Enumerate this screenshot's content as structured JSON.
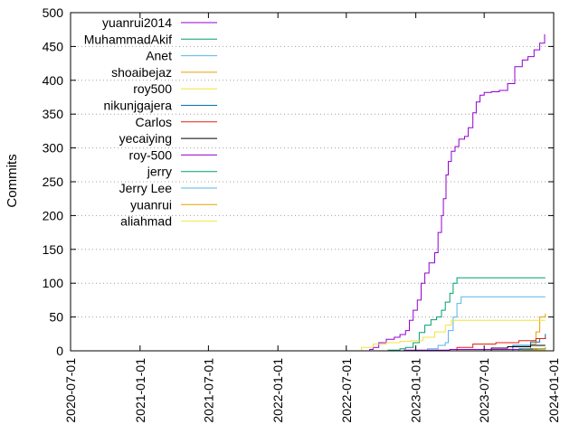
{
  "chart_data": {
    "type": "line",
    "title": "",
    "xlabel": "",
    "ylabel": "Commits",
    "x_axis": "date",
    "xlim": [
      "2020-07-01",
      "2024-01-01"
    ],
    "ylim": [
      0,
      500
    ],
    "grid": true,
    "legend_position": "top-left",
    "x_ticks": [
      "2020-07-01",
      "2021-01-01",
      "2021-07-01",
      "2022-01-01",
      "2022-07-01",
      "2023-01-01",
      "2023-07-01",
      "2024-01-01"
    ],
    "y_ticks": [
      0,
      50,
      100,
      150,
      200,
      250,
      300,
      350,
      400,
      450,
      500
    ],
    "series": [
      {
        "name": "yuanrui2014",
        "color": "#9400d3",
        "points": [
          [
            "2022-08-20",
            0
          ],
          [
            "2022-09-01",
            2
          ],
          [
            "2022-09-10",
            5
          ],
          [
            "2022-09-25",
            12
          ],
          [
            "2022-10-15",
            17
          ],
          [
            "2022-11-05",
            20
          ],
          [
            "2022-11-20",
            24
          ],
          [
            "2022-12-05",
            30
          ],
          [
            "2022-12-15",
            45
          ],
          [
            "2022-12-25",
            60
          ],
          [
            "2023-01-05",
            75
          ],
          [
            "2023-01-15",
            100
          ],
          [
            "2023-01-25",
            115
          ],
          [
            "2023-02-05",
            130
          ],
          [
            "2023-02-20",
            145
          ],
          [
            "2023-03-01",
            175
          ],
          [
            "2023-03-10",
            200
          ],
          [
            "2023-03-15",
            225
          ],
          [
            "2023-03-22",
            260
          ],
          [
            "2023-03-28",
            280
          ],
          [
            "2023-04-05",
            295
          ],
          [
            "2023-04-15",
            302
          ],
          [
            "2023-04-25",
            313
          ],
          [
            "2023-05-10",
            317
          ],
          [
            "2023-05-20",
            330
          ],
          [
            "2023-06-01",
            352
          ],
          [
            "2023-06-10",
            368
          ],
          [
            "2023-06-20",
            378
          ],
          [
            "2023-07-01",
            382
          ],
          [
            "2023-07-20",
            383
          ],
          [
            "2023-08-10",
            385
          ],
          [
            "2023-09-01",
            395
          ],
          [
            "2023-09-20",
            420
          ],
          [
            "2023-10-10",
            430
          ],
          [
            "2023-10-25",
            435
          ],
          [
            "2023-11-10",
            445
          ],
          [
            "2023-11-25",
            455
          ],
          [
            "2023-12-08",
            468
          ]
        ]
      },
      {
        "name": "MuhammadAkif",
        "color": "#009e73",
        "points": [
          [
            "2022-09-01",
            0
          ],
          [
            "2022-10-20",
            1
          ],
          [
            "2022-11-20",
            3
          ],
          [
            "2022-12-05",
            5
          ],
          [
            "2022-12-25",
            12
          ],
          [
            "2023-01-10",
            27
          ],
          [
            "2023-01-25",
            38
          ],
          [
            "2023-02-10",
            46
          ],
          [
            "2023-02-25",
            50
          ],
          [
            "2023-03-10",
            60
          ],
          [
            "2023-03-20",
            72
          ],
          [
            "2023-04-01",
            85
          ],
          [
            "2023-04-10",
            100
          ],
          [
            "2023-04-20",
            108
          ],
          [
            "2023-07-01",
            108
          ],
          [
            "2023-10-01",
            108
          ],
          [
            "2023-12-10",
            108
          ]
        ]
      },
      {
        "name": "Anet",
        "color": "#56b4e9",
        "points": [
          [
            "2022-12-20",
            0
          ],
          [
            "2023-02-01",
            3
          ],
          [
            "2023-03-01",
            8
          ],
          [
            "2023-03-20",
            12
          ],
          [
            "2023-03-28",
            30
          ],
          [
            "2023-04-10",
            50
          ],
          [
            "2023-04-20",
            70
          ],
          [
            "2023-05-01",
            80
          ],
          [
            "2023-08-01",
            80
          ],
          [
            "2023-10-01",
            80
          ],
          [
            "2023-12-10",
            80
          ]
        ]
      },
      {
        "name": "shoaibejaz",
        "color": "#e69f00",
        "points": [
          [
            "2023-10-20",
            0
          ],
          [
            "2023-11-01",
            10
          ],
          [
            "2023-11-15",
            28
          ],
          [
            "2023-11-25",
            50
          ],
          [
            "2023-12-10",
            55
          ]
        ]
      },
      {
        "name": "roy500",
        "color": "#f0e442",
        "points": [
          [
            "2022-07-15",
            0
          ],
          [
            "2022-08-10",
            5
          ],
          [
            "2022-09-10",
            10
          ],
          [
            "2022-10-15",
            12
          ],
          [
            "2022-11-20",
            14
          ],
          [
            "2022-12-20",
            15
          ],
          [
            "2023-01-20",
            20
          ],
          [
            "2023-02-20",
            28
          ],
          [
            "2023-03-20",
            38
          ],
          [
            "2023-04-05",
            45
          ],
          [
            "2023-07-01",
            45
          ],
          [
            "2023-10-01",
            45
          ],
          [
            "2023-12-10",
            45
          ]
        ]
      },
      {
        "name": "nikunjgajera",
        "color": "#0072b2",
        "points": [
          [
            "2023-08-01",
            0
          ],
          [
            "2023-09-15",
            8
          ],
          [
            "2023-11-01",
            13
          ],
          [
            "2023-11-25",
            18
          ],
          [
            "2023-12-10",
            25
          ]
        ]
      },
      {
        "name": "Carlos",
        "color": "#e51e10",
        "points": [
          [
            "2023-04-01",
            0
          ],
          [
            "2023-04-20",
            5
          ],
          [
            "2023-06-01",
            10
          ],
          [
            "2023-08-01",
            12
          ],
          [
            "2023-10-01",
            15
          ],
          [
            "2023-11-15",
            18
          ],
          [
            "2023-12-10",
            20
          ]
        ]
      },
      {
        "name": "yecaiying",
        "color": "#000000",
        "points": [
          [
            "2023-07-01",
            0
          ],
          [
            "2023-07-20",
            4
          ],
          [
            "2023-09-01",
            6
          ],
          [
            "2023-11-01",
            8
          ],
          [
            "2023-12-10",
            8
          ]
        ]
      },
      {
        "name": "roy-500",
        "color": "#9400d3",
        "points": [
          [
            "2022-08-01",
            0
          ],
          [
            "2022-12-01",
            1
          ],
          [
            "2023-04-01",
            2
          ],
          [
            "2023-12-10",
            2
          ]
        ]
      },
      {
        "name": "jerry",
        "color": "#009e73",
        "points": [
          [
            "2023-07-15",
            0
          ],
          [
            "2023-10-01",
            3
          ],
          [
            "2023-12-10",
            5
          ]
        ]
      },
      {
        "name": "Jerry Lee",
        "color": "#56b4e9",
        "points": [
          [
            "2023-09-01",
            0
          ],
          [
            "2023-11-20",
            2
          ],
          [
            "2023-12-10",
            3
          ]
        ]
      },
      {
        "name": "yuanrui",
        "color": "#e69f00",
        "points": [
          [
            "2023-09-01",
            0
          ],
          [
            "2023-11-10",
            3
          ],
          [
            "2023-12-10",
            4
          ]
        ]
      },
      {
        "name": "aliahmad",
        "color": "#f0e442",
        "points": [
          [
            "2023-08-01",
            0
          ],
          [
            "2023-10-10",
            1
          ],
          [
            "2023-12-10",
            2
          ]
        ]
      }
    ]
  }
}
